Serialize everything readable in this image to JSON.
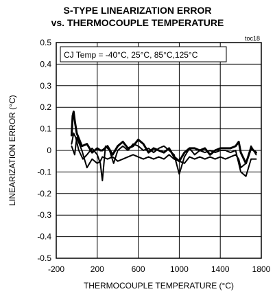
{
  "chart_data": {
    "type": "line",
    "title": "S-TYPE LINEARIZATION ERROR",
    "subtitle": "vs. THERMOCOUPLE TEMPERATURE",
    "figure_id": "toc18",
    "annotation": "CJ Temp = -40°C, 25°C, 85°C,125°C",
    "xlabel": "THERMOCOUPLE TEMPERATURE (°C)",
    "ylabel": "LINEARIZATION ERROR (°C)",
    "xlim": [
      -200,
      1800
    ],
    "ylim": [
      -0.5,
      0.5
    ],
    "xticks": [
      -200,
      200,
      600,
      1000,
      1400,
      1800
    ],
    "yticks": [
      0.5,
      0.4,
      0.3,
      0.2,
      0.1,
      0,
      -0.1,
      -0.2,
      -0.3,
      -0.4,
      -0.5
    ],
    "grid": true,
    "series": [
      {
        "x": [
          -50,
          -40,
          -30,
          -20,
          0,
          50,
          100,
          150,
          200,
          230,
          250,
          300,
          350,
          400,
          450,
          500,
          550,
          600,
          650,
          700,
          750,
          800,
          850,
          900,
          950,
          1000,
          1050,
          1100,
          1150,
          1200,
          1250,
          1300,
          1350,
          1400,
          1450,
          1500,
          1550,
          1580,
          1600,
          1650,
          1700,
          1750
        ],
        "y": [
          0.07,
          0.16,
          0.18,
          0.14,
          0.08,
          0.02,
          0.03,
          -0.01,
          0.01,
          0.0,
          0.0,
          0.02,
          -0.02,
          0.02,
          0.04,
          0.01,
          0.02,
          0.05,
          0.03,
          -0.01,
          0.01,
          0.0,
          -0.01,
          0.01,
          -0.03,
          -0.05,
          -0.01,
          0.01,
          0.01,
          0.0,
          0.01,
          -0.02,
          0.0,
          0.01,
          0.01,
          0.01,
          0.02,
          0.04,
          -0.01,
          -0.06,
          0.01,
          -0.01
        ],
        "stroke_width": 3
      },
      {
        "x": [
          -50,
          -30,
          -10,
          20,
          60,
          100,
          150,
          200,
          230,
          250,
          280,
          320,
          360,
          400,
          450,
          500,
          550,
          600,
          650,
          700,
          750,
          800,
          850,
          900,
          950,
          1000,
          1050,
          1100,
          1150,
          1200,
          1250,
          1300,
          1350,
          1400,
          1450,
          1500,
          1550,
          1580,
          1600,
          1650,
          1700,
          1750
        ],
        "y": [
          0.03,
          0.08,
          0.06,
          0.0,
          -0.04,
          -0.02,
          0.01,
          -0.02,
          -0.06,
          -0.14,
          0.02,
          0.0,
          -0.06,
          0.0,
          0.02,
          0.0,
          0.03,
          0.02,
          0.0,
          0.01,
          -0.01,
          0.01,
          0.02,
          0.0,
          -0.02,
          -0.11,
          -0.03,
          0.01,
          -0.02,
          0.0,
          -0.01,
          0.0,
          -0.01,
          0.0,
          0.0,
          -0.01,
          0.0,
          -0.06,
          -0.1,
          -0.12,
          -0.04,
          -0.04
        ],
        "stroke_width": 2
      },
      {
        "x": [
          -50,
          -20,
          0,
          50,
          100,
          150,
          200,
          230,
          250,
          300,
          350,
          400,
          450,
          500,
          550,
          600,
          650,
          700,
          750,
          800,
          850,
          900,
          950,
          1000,
          1050,
          1100,
          1150,
          1200,
          1250,
          1300,
          1350,
          1400,
          1450,
          1500,
          1550,
          1580,
          1600,
          1650,
          1700,
          1750
        ],
        "y": [
          0.02,
          -0.02,
          0.06,
          0.0,
          -0.08,
          -0.04,
          -0.06,
          -0.05,
          -0.03,
          -0.04,
          -0.03,
          -0.05,
          -0.04,
          -0.03,
          -0.02,
          -0.03,
          -0.04,
          -0.03,
          -0.04,
          -0.03,
          -0.04,
          -0.02,
          -0.04,
          -0.05,
          -0.06,
          -0.03,
          -0.04,
          -0.03,
          -0.04,
          -0.03,
          -0.04,
          -0.03,
          -0.04,
          -0.03,
          -0.02,
          -0.04,
          -0.08,
          -0.06,
          0.02,
          -0.02
        ],
        "stroke_width": 2
      }
    ]
  }
}
